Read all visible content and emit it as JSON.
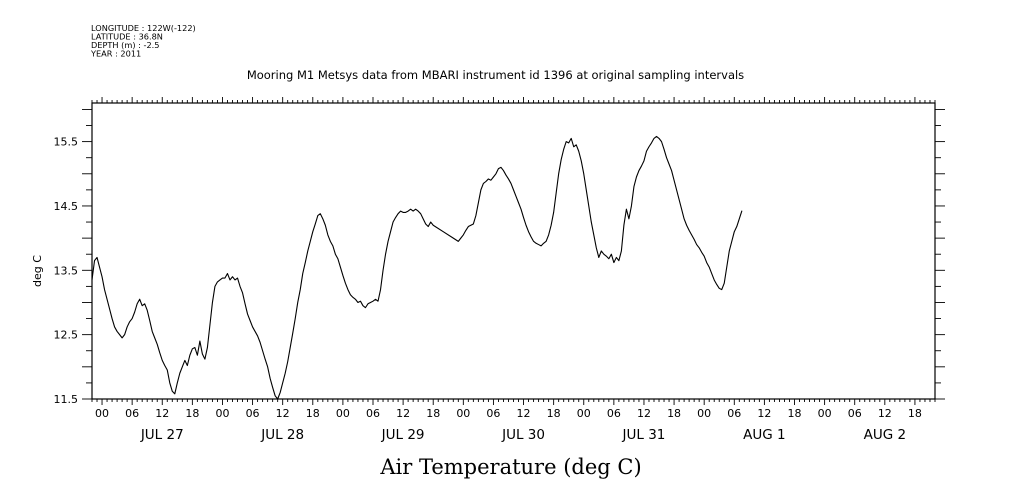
{
  "chart_data": {
    "type": "line",
    "metadata_lines": [
      "LONGITUDE : 122W(-122)",
      "LATITUDE : 36.8N",
      "DEPTH (m) : -2.5",
      "YEAR : 2011"
    ],
    "title": "Mooring M1 Metsys data from MBARI instrument id 1396 at original sampling intervals",
    "xlabel": "Air Temperature (deg C)",
    "ylabel": "deg C",
    "x_start": "2011-07-26T22:00",
    "xlim": [
      -2,
      166
    ],
    "ylim": [
      11.5,
      16.1
    ],
    "yticks": [
      11.5,
      12.5,
      13.5,
      14.5,
      15.5
    ],
    "ytick_labels": [
      "11.5",
      "12.5",
      "13.5",
      "14.5",
      "15.5"
    ],
    "hour_ticks": [
      {
        "x": 0,
        "label": "00"
      },
      {
        "x": 6,
        "label": "06"
      },
      {
        "x": 12,
        "label": "12"
      },
      {
        "x": 18,
        "label": "18"
      },
      {
        "x": 24,
        "label": "00"
      },
      {
        "x": 30,
        "label": "06"
      },
      {
        "x": 36,
        "label": "12"
      },
      {
        "x": 42,
        "label": "18"
      },
      {
        "x": 48,
        "label": "00"
      },
      {
        "x": 54,
        "label": "06"
      },
      {
        "x": 60,
        "label": "12"
      },
      {
        "x": 66,
        "label": "18"
      },
      {
        "x": 72,
        "label": "00"
      },
      {
        "x": 78,
        "label": "06"
      },
      {
        "x": 84,
        "label": "12"
      },
      {
        "x": 90,
        "label": "18"
      },
      {
        "x": 96,
        "label": "00"
      },
      {
        "x": 102,
        "label": "06"
      },
      {
        "x": 108,
        "label": "12"
      },
      {
        "x": 114,
        "label": "18"
      },
      {
        "x": 120,
        "label": "00"
      },
      {
        "x": 126,
        "label": "06"
      },
      {
        "x": 132,
        "label": "12"
      },
      {
        "x": 138,
        "label": "18"
      },
      {
        "x": 144,
        "label": "00"
      },
      {
        "x": 150,
        "label": "06"
      },
      {
        "x": 156,
        "label": "12"
      },
      {
        "x": 162,
        "label": "18"
      }
    ],
    "day_labels": [
      {
        "x": 12,
        "label": "JUL 27"
      },
      {
        "x": 36,
        "label": "JUL 28"
      },
      {
        "x": 60,
        "label": "JUL 29"
      },
      {
        "x": 84,
        "label": "JUL 30"
      },
      {
        "x": 108,
        "label": "JUL 31"
      },
      {
        "x": 132,
        "label": "AUG  1"
      },
      {
        "x": 156,
        "label": "AUG  2"
      }
    ],
    "series": [
      {
        "color": "#000000",
        "points": [
          [
            -2,
            13.35
          ],
          [
            -1.5,
            13.65
          ],
          [
            -1,
            13.7
          ],
          [
            -0.5,
            13.55
          ],
          [
            0,
            13.4
          ],
          [
            0.5,
            13.2
          ],
          [
            1,
            13.05
          ],
          [
            1.5,
            12.9
          ],
          [
            2,
            12.75
          ],
          [
            2.5,
            12.62
          ],
          [
            3,
            12.55
          ],
          [
            3.5,
            12.5
          ],
          [
            4,
            12.45
          ],
          [
            4.5,
            12.5
          ],
          [
            5,
            12.62
          ],
          [
            5.5,
            12.7
          ],
          [
            6,
            12.75
          ],
          [
            6.5,
            12.85
          ],
          [
            7,
            12.98
          ],
          [
            7.5,
            13.05
          ],
          [
            8,
            12.95
          ],
          [
            8.5,
            12.98
          ],
          [
            9,
            12.88
          ],
          [
            9.5,
            12.72
          ],
          [
            10,
            12.55
          ],
          [
            10.5,
            12.45
          ],
          [
            11,
            12.35
          ],
          [
            11.5,
            12.22
          ],
          [
            12,
            12.1
          ],
          [
            12.5,
            12.02
          ],
          [
            13,
            11.95
          ],
          [
            13.5,
            11.75
          ],
          [
            14,
            11.62
          ],
          [
            14.5,
            11.58
          ],
          [
            15,
            11.75
          ],
          [
            15.5,
            11.9
          ],
          [
            16,
            12.0
          ],
          [
            16.5,
            12.1
          ],
          [
            17,
            12.02
          ],
          [
            17.5,
            12.18
          ],
          [
            18,
            12.28
          ],
          [
            18.5,
            12.3
          ],
          [
            19,
            12.18
          ],
          [
            19.5,
            12.4
          ],
          [
            20,
            12.2
          ],
          [
            20.5,
            12.12
          ],
          [
            21,
            12.3
          ],
          [
            21.5,
            12.65
          ],
          [
            22,
            13.0
          ],
          [
            22.5,
            13.25
          ],
          [
            23,
            13.32
          ],
          [
            23.5,
            13.35
          ],
          [
            24,
            13.38
          ],
          [
            24.5,
            13.38
          ],
          [
            25,
            13.45
          ],
          [
            25.5,
            13.35
          ],
          [
            26,
            13.4
          ],
          [
            26.5,
            13.35
          ],
          [
            27,
            13.38
          ],
          [
            27.5,
            13.25
          ],
          [
            28,
            13.15
          ],
          [
            28.5,
            12.98
          ],
          [
            29,
            12.82
          ],
          [
            29.5,
            12.72
          ],
          [
            30,
            12.62
          ],
          [
            30.5,
            12.55
          ],
          [
            31,
            12.48
          ],
          [
            31.5,
            12.38
          ],
          [
            32,
            12.25
          ],
          [
            32.5,
            12.12
          ],
          [
            33,
            12.0
          ],
          [
            33.5,
            11.82
          ],
          [
            34,
            11.68
          ],
          [
            34.5,
            11.55
          ],
          [
            35,
            11.5
          ],
          [
            35.5,
            11.6
          ],
          [
            36,
            11.75
          ],
          [
            36.5,
            11.9
          ],
          [
            37,
            12.08
          ],
          [
            37.5,
            12.3
          ],
          [
            38,
            12.52
          ],
          [
            38.5,
            12.75
          ],
          [
            39,
            13.0
          ],
          [
            39.5,
            13.2
          ],
          [
            40,
            13.45
          ],
          [
            40.5,
            13.62
          ],
          [
            41,
            13.8
          ],
          [
            41.5,
            13.95
          ],
          [
            42,
            14.1
          ],
          [
            42.5,
            14.22
          ],
          [
            43,
            14.35
          ],
          [
            43.5,
            14.38
          ],
          [
            44,
            14.3
          ],
          [
            44.5,
            14.2
          ],
          [
            45,
            14.05
          ],
          [
            45.5,
            13.95
          ],
          [
            46,
            13.88
          ],
          [
            46.5,
            13.75
          ],
          [
            47,
            13.68
          ],
          [
            47.5,
            13.55
          ],
          [
            48,
            13.42
          ],
          [
            48.5,
            13.3
          ],
          [
            49,
            13.2
          ],
          [
            49.5,
            13.12
          ],
          [
            50,
            13.08
          ],
          [
            50.5,
            13.05
          ],
          [
            51,
            13.0
          ],
          [
            51.5,
            13.02
          ],
          [
            52,
            12.95
          ],
          [
            52.5,
            12.92
          ],
          [
            53,
            12.98
          ],
          [
            53.5,
            13.0
          ],
          [
            54,
            13.02
          ],
          [
            54.5,
            13.05
          ],
          [
            55,
            13.02
          ],
          [
            55.5,
            13.2
          ],
          [
            56,
            13.5
          ],
          [
            56.5,
            13.75
          ],
          [
            57,
            13.95
          ],
          [
            57.5,
            14.1
          ],
          [
            58,
            14.25
          ],
          [
            58.5,
            14.32
          ],
          [
            59,
            14.38
          ],
          [
            59.5,
            14.42
          ],
          [
            60,
            14.4
          ],
          [
            60.5,
            14.4
          ],
          [
            61,
            14.42
          ],
          [
            61.5,
            14.45
          ],
          [
            62,
            14.42
          ],
          [
            62.5,
            14.45
          ],
          [
            63,
            14.42
          ],
          [
            63.5,
            14.38
          ],
          [
            64,
            14.3
          ],
          [
            64.5,
            14.22
          ],
          [
            65,
            14.18
          ],
          [
            65.5,
            14.25
          ],
          [
            66,
            14.2
          ],
          [
            68,
            14.1
          ],
          [
            70,
            14.0
          ],
          [
            71,
            13.95
          ],
          [
            71.5,
            14.0
          ],
          [
            72,
            14.05
          ],
          [
            72.5,
            14.12
          ],
          [
            73,
            14.18
          ],
          [
            73.5,
            14.2
          ],
          [
            74,
            14.22
          ],
          [
            74.5,
            14.35
          ],
          [
            75,
            14.55
          ],
          [
            75.5,
            14.75
          ],
          [
            76,
            14.85
          ],
          [
            76.5,
            14.88
          ],
          [
            77,
            14.92
          ],
          [
            77.5,
            14.9
          ],
          [
            78,
            14.95
          ],
          [
            78.5,
            15.0
          ],
          [
            79,
            15.08
          ],
          [
            79.5,
            15.1
          ],
          [
            80,
            15.05
          ],
          [
            80.5,
            14.98
          ],
          [
            81,
            14.92
          ],
          [
            81.5,
            14.85
          ],
          [
            82,
            14.75
          ],
          [
            82.5,
            14.65
          ],
          [
            83,
            14.55
          ],
          [
            83.5,
            14.45
          ],
          [
            84,
            14.32
          ],
          [
            84.5,
            14.2
          ],
          [
            85,
            14.1
          ],
          [
            85.5,
            14.02
          ],
          [
            86,
            13.95
          ],
          [
            86.5,
            13.92
          ],
          [
            87,
            13.9
          ],
          [
            87.5,
            13.88
          ],
          [
            88,
            13.92
          ],
          [
            88.5,
            13.95
          ],
          [
            89,
            14.05
          ],
          [
            89.5,
            14.2
          ],
          [
            90,
            14.4
          ],
          [
            90.5,
            14.7
          ],
          [
            91,
            15.0
          ],
          [
            91.5,
            15.22
          ],
          [
            92,
            15.38
          ],
          [
            92.5,
            15.5
          ],
          [
            93,
            15.48
          ],
          [
            93.5,
            15.55
          ],
          [
            94,
            15.42
          ],
          [
            94.5,
            15.45
          ],
          [
            95,
            15.35
          ],
          [
            95.5,
            15.2
          ],
          [
            96,
            15.0
          ],
          [
            96.5,
            14.75
          ],
          [
            97,
            14.5
          ],
          [
            97.5,
            14.25
          ],
          [
            98,
            14.05
          ],
          [
            98.5,
            13.85
          ],
          [
            99,
            13.7
          ],
          [
            99.5,
            13.8
          ],
          [
            100,
            13.75
          ],
          [
            100.5,
            13.72
          ],
          [
            101,
            13.68
          ],
          [
            101.5,
            13.75
          ],
          [
            102,
            13.62
          ],
          [
            102.5,
            13.7
          ],
          [
            103,
            13.65
          ],
          [
            103.5,
            13.8
          ],
          [
            104,
            14.2
          ],
          [
            104.5,
            14.45
          ],
          [
            105,
            14.3
          ],
          [
            105.5,
            14.5
          ],
          [
            106,
            14.8
          ],
          [
            106.5,
            14.95
          ],
          [
            107,
            15.05
          ],
          [
            107.5,
            15.12
          ],
          [
            108,
            15.2
          ],
          [
            108.5,
            15.35
          ],
          [
            109,
            15.42
          ],
          [
            109.5,
            15.48
          ],
          [
            110,
            15.55
          ],
          [
            110.5,
            15.58
          ],
          [
            111,
            15.55
          ],
          [
            111.5,
            15.5
          ],
          [
            112,
            15.38
          ],
          [
            112.5,
            15.25
          ],
          [
            113,
            15.15
          ],
          [
            113.5,
            15.05
          ],
          [
            114,
            14.9
          ],
          [
            114.5,
            14.75
          ],
          [
            115,
            14.6
          ],
          [
            115.5,
            14.45
          ],
          [
            116,
            14.3
          ],
          [
            116.5,
            14.2
          ],
          [
            117,
            14.12
          ],
          [
            117.5,
            14.05
          ],
          [
            118,
            13.98
          ],
          [
            118.5,
            13.9
          ],
          [
            119,
            13.85
          ],
          [
            119.5,
            13.78
          ],
          [
            120,
            13.72
          ],
          [
            120.5,
            13.62
          ],
          [
            121,
            13.55
          ],
          [
            121.5,
            13.45
          ],
          [
            122,
            13.35
          ],
          [
            122.5,
            13.28
          ],
          [
            123,
            13.22
          ],
          [
            123.5,
            13.2
          ],
          [
            124,
            13.3
          ],
          [
            124.5,
            13.55
          ],
          [
            125,
            13.8
          ],
          [
            125.5,
            13.95
          ],
          [
            126,
            14.1
          ],
          [
            126.5,
            14.18
          ],
          [
            127,
            14.3
          ],
          [
            127.5,
            14.42
          ]
        ]
      }
    ]
  }
}
